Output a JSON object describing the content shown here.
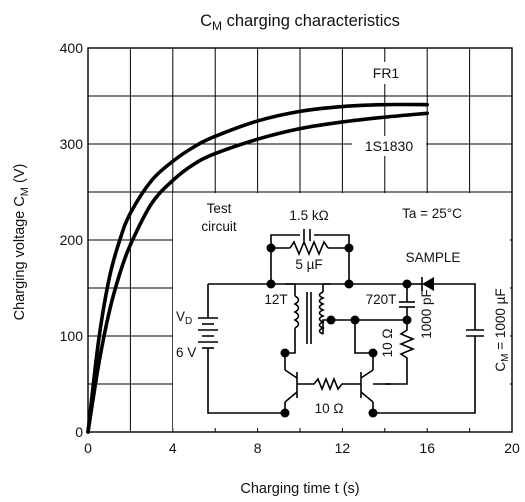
{
  "chart_data": {
    "type": "line",
    "title_main": "C",
    "title_sub": "M",
    "title_rest": " charging characteristics",
    "xlabel": "Charging time   t   (s)",
    "ylabel_main": "Charging voltage   C",
    "ylabel_sub": "M",
    "ylabel_unit": "   (V)",
    "xlim": [
      0,
      20
    ],
    "ylim": [
      0,
      400
    ],
    "x_ticks": [
      "0",
      "4",
      "8",
      "12",
      "16",
      "20"
    ],
    "y_ticks": [
      "0",
      "100",
      "200",
      "300",
      "400"
    ],
    "grid": true,
    "series": [
      {
        "name": "FR1",
        "x": [
          0,
          0.5,
          1,
          1.5,
          2,
          3,
          4,
          5,
          6,
          8,
          10,
          12,
          14,
          16
        ],
        "y": [
          0,
          95,
          160,
          200,
          228,
          262,
          282,
          297,
          308,
          324,
          334,
          339,
          341,
          341
        ]
      },
      {
        "name": "1S1830",
        "x": [
          0,
          0.5,
          1,
          1.5,
          2,
          3,
          4,
          5,
          6,
          8,
          10,
          12,
          14,
          16
        ],
        "y": [
          0,
          70,
          125,
          165,
          195,
          238,
          262,
          279,
          290,
          305,
          316,
          323,
          328,
          332
        ]
      }
    ]
  },
  "circuit": {
    "test_label_1": "Test",
    "test_label_2": "circuit",
    "temp_label": "Ta = 25°C",
    "r_top": "1.5 kΩ",
    "c_top": "5 µF",
    "sample": "SAMPLE",
    "t12": "12T",
    "t720": "720T",
    "vd_main": "V",
    "vd_sub": "D",
    "vd_val": "6 V",
    "r10_v": "10 Ω",
    "c1000p": "1000 pF",
    "r10_h": "10 Ω",
    "cm_main": "C",
    "cm_sub": "M",
    "cm_rest": " = 1000 µF"
  }
}
